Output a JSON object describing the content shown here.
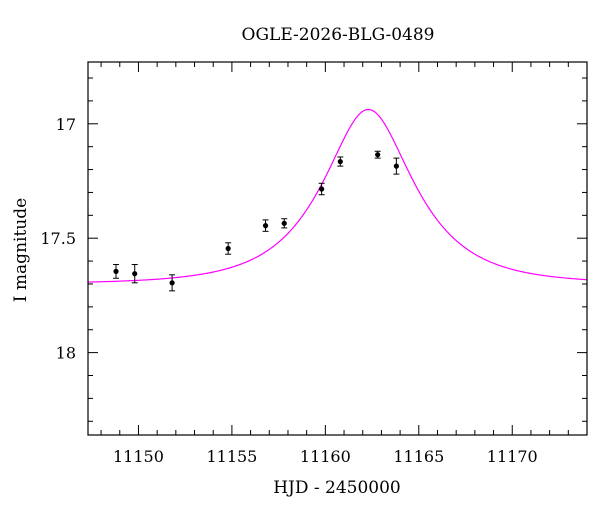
{
  "chart_data": {
    "type": "scatter",
    "title": "OGLE-2026-BLG-0489",
    "xlabel": "HJD - 2450000",
    "ylabel": "I magnitude",
    "xlim": [
      11147.3,
      11174.0
    ],
    "ylim": [
      18.36,
      16.73
    ],
    "y_inverted": true,
    "grid": false,
    "legend": "none",
    "x_ticks_major": [
      11150,
      11155,
      11160,
      11165,
      11170
    ],
    "y_ticks_major": [
      17,
      17.5,
      18
    ],
    "x_tick_labels": [
      "11150",
      "11155",
      "11160",
      "11165",
      "11170"
    ],
    "y_tick_labels": [
      "17",
      "17.5",
      "18"
    ],
    "series": [
      {
        "kind": "points",
        "color": "#000000",
        "x": [
          11148.8,
          11149.8,
          11151.8,
          11154.8,
          11156.8,
          11157.8,
          11159.8,
          11160.8,
          11162.8,
          11163.8
        ],
        "y": [
          17.645,
          17.655,
          17.695,
          17.545,
          17.445,
          17.435,
          17.285,
          17.165,
          17.135,
          17.185
        ],
        "yerr": [
          0.03,
          0.04,
          0.035,
          0.025,
          0.025,
          0.02,
          0.025,
          0.02,
          0.015,
          0.035
        ]
      },
      {
        "kind": "model",
        "color": "#ff00ff",
        "model": "paczynski",
        "t0": 11162.3,
        "tE": 4.0,
        "u0": 0.55,
        "baseline_mag": 17.7
      }
    ]
  }
}
